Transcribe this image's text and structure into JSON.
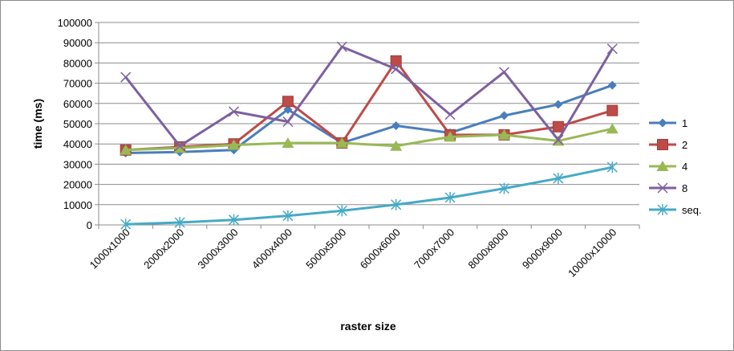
{
  "chart_data": {
    "type": "line",
    "title": "",
    "xlabel": "raster size",
    "ylabel": "time (ms)",
    "categories": [
      "1000x1000",
      "2000x2000",
      "3000x3000",
      "4000x4000",
      "5000x5000",
      "6000x6000",
      "7000x7000",
      "8000x8000",
      "9000x9000",
      "10000x10000"
    ],
    "ylim": [
      0,
      100000
    ],
    "yticks": [
      0,
      10000,
      20000,
      30000,
      40000,
      50000,
      60000,
      70000,
      80000,
      90000,
      100000
    ],
    "ytick_labels": [
      "0",
      "10000",
      "20000",
      "30000",
      "40000",
      "50000",
      "60000",
      "70000",
      "80000",
      "90000",
      "100000"
    ],
    "grid": "horizontal",
    "legend_position": "right",
    "series": [
      {
        "name": "1",
        "color": "#4a7ebb",
        "marker": "diamond",
        "values": [
          35500,
          36000,
          37000,
          57000,
          40500,
          49000,
          45500,
          54000,
          59500,
          69000
        ]
      },
      {
        "name": "2",
        "color": "#be4b48",
        "marker": "square",
        "values": [
          37000,
          38500,
          40000,
          61000,
          40500,
          81000,
          44500,
          44500,
          48500,
          56500
        ]
      },
      {
        "name": "4",
        "color": "#98b954",
        "marker": "triangle",
        "values": [
          37000,
          38000,
          39500,
          40500,
          40500,
          39000,
          43500,
          44500,
          41500,
          47500
        ]
      },
      {
        "name": "8",
        "color": "#7d60a0",
        "marker": "x",
        "values": [
          73000,
          39000,
          56000,
          51000,
          88000,
          77000,
          54500,
          75500,
          42000,
          87000
        ]
      },
      {
        "name": "seq.",
        "color": "#46aac5",
        "marker": "star",
        "values": [
          300,
          1200,
          2500,
          4500,
          7000,
          10000,
          13500,
          18000,
          23000,
          28500
        ]
      }
    ]
  }
}
